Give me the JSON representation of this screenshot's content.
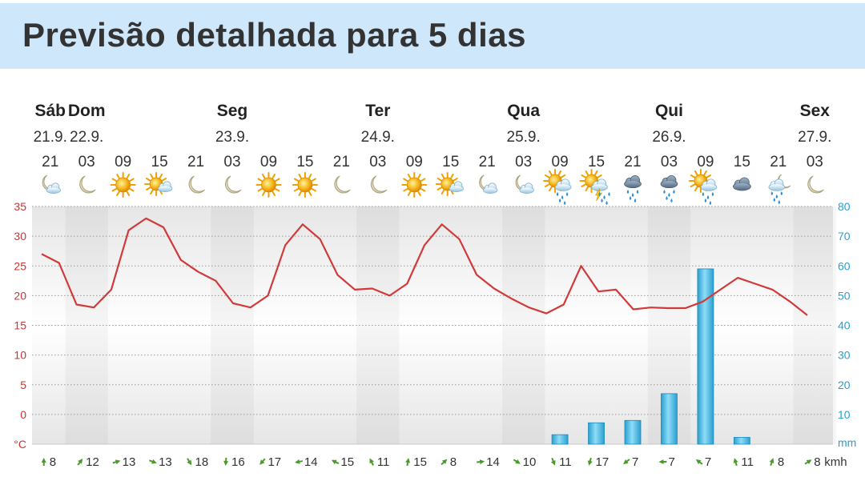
{
  "page_title": "Previsão detalhada para 5 dias",
  "chart_data": {
    "type": "line",
    "days": [
      {
        "name": "Sáb",
        "date": "21.9."
      },
      {
        "name": "Dom",
        "date": "22.9."
      },
      {
        "name": "Seg",
        "date": "23.9."
      },
      {
        "name": "Ter",
        "date": "24.9."
      },
      {
        "name": "Qua",
        "date": "25.9."
      },
      {
        "name": "Qui",
        "date": "26.9."
      },
      {
        "name": "Sex",
        "date": "27.9."
      }
    ],
    "hours": [
      "21",
      "03",
      "09",
      "15",
      "21",
      "03",
      "09",
      "15",
      "21",
      "03",
      "09",
      "15",
      "21",
      "03",
      "09",
      "15",
      "21",
      "03",
      "09",
      "15",
      "21",
      "03"
    ],
    "icons": [
      "moon-cloud-icon",
      "moon-icon",
      "sun-icon",
      "sun-cloud-icon",
      "moon-icon",
      "moon-icon",
      "sun-icon",
      "sun-icon",
      "moon-icon",
      "moon-icon",
      "sun-icon",
      "sun-cloud-icon",
      "moon-cloud-icon",
      "moon-cloud-icon",
      "sun-rain-icon",
      "sun-thunder-icon",
      "rain-icon",
      "rain-icon",
      "sun-rain-icon",
      "cloud-icon",
      "moon-rain-icon",
      "moon-icon"
    ],
    "temperature": {
      "unit": "°C",
      "ylim": [
        -5,
        35
      ],
      "ticks": [
        35,
        30,
        25,
        20,
        15,
        10,
        5,
        0
      ],
      "values": [
        27,
        25.5,
        18.5,
        18,
        21,
        31,
        33,
        31.5,
        26,
        24,
        22.5,
        18.7,
        18,
        20,
        28.5,
        32,
        29.5,
        23.5,
        21,
        21.2,
        20,
        22,
        28.5,
        32,
        29.5,
        23.5,
        21.2,
        19.5,
        18,
        17,
        18.5,
        25,
        20.7,
        21,
        17.7,
        18,
        17.9,
        17.9,
        19,
        21,
        23,
        22,
        21,
        19,
        16.7
      ]
    },
    "precipitation": {
      "unit": "mm",
      "ylim": [
        0,
        80
      ],
      "ticks": [
        80,
        70,
        60,
        50,
        40,
        30,
        20,
        10
      ],
      "values": [
        0,
        0,
        0,
        0,
        0,
        0,
        0,
        0,
        0,
        0,
        0,
        0,
        0,
        0,
        3.2,
        7.2,
        8,
        17,
        59,
        2.3,
        0,
        0
      ]
    },
    "wind": {
      "unit": "kmh",
      "values": [
        "8",
        "12",
        "13",
        "13",
        "18",
        "16",
        "17",
        "14",
        "15",
        "11",
        "15",
        "8",
        "14",
        "10",
        "11",
        "17",
        "7",
        "7",
        "7",
        "11",
        "8",
        "8"
      ]
    },
    "grid": true,
    "colors": {
      "temperature": "#d13a3a",
      "precipitation": "#3bb3e0",
      "wind_arrow": "#4a9a2a",
      "title_bar": "#cfe7fb"
    }
  }
}
